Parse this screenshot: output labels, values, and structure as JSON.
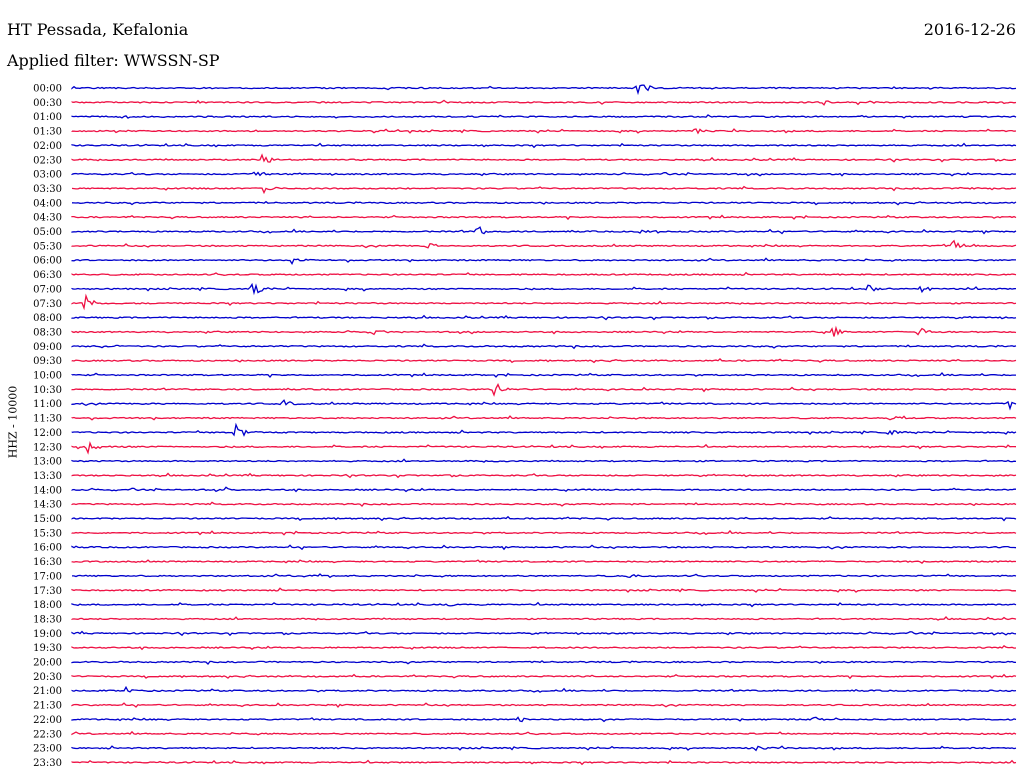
{
  "header": {
    "station": "HT Pessada, Kefalonia",
    "date": "2016-12-26",
    "filter_label": "Applied filter: WWSSN-SP"
  },
  "channel_label": "HHZ - 10000",
  "colors": {
    "trace_a": "#0000cc",
    "trace_b": "#ee1144"
  },
  "chart_data": {
    "type": "line",
    "title": "HT Pessada, Kefalonia",
    "subtitle": "Applied filter: WWSSN-SP",
    "ylabel": "HHZ - 10000",
    "row_labels": [
      "00:00",
      "00:30",
      "01:00",
      "01:30",
      "02:00",
      "02:30",
      "03:00",
      "03:30",
      "04:00",
      "04:30",
      "05:00",
      "05:30",
      "06:00",
      "06:30",
      "07:00",
      "07:30",
      "08:00",
      "08:30",
      "09:00",
      "09:30",
      "10:00",
      "10:30",
      "11:00",
      "11:30",
      "12:00",
      "12:30",
      "13:00",
      "13:30",
      "14:00",
      "14:30",
      "15:00",
      "15:30",
      "16:00",
      "16:30",
      "17:00",
      "17:30",
      "18:00",
      "18:30",
      "19:00",
      "19:30",
      "20:00",
      "20:30",
      "21:00",
      "21:30",
      "22:00",
      "22:30",
      "23:00",
      "23:30"
    ],
    "row_minutes": 30,
    "series": [
      {
        "color": "trace_a",
        "rows": "even"
      },
      {
        "color": "trace_b",
        "rows": "odd"
      }
    ],
    "events": [
      {
        "row": "00:00",
        "minute": 18.0,
        "amplitude": 9
      },
      {
        "row": "00:30",
        "minute": 23.9,
        "amplitude": 4
      },
      {
        "row": "01:00",
        "minute": 1.6,
        "amplitude": 3
      },
      {
        "row": "01:30",
        "minute": 19.8,
        "amplitude": 3
      },
      {
        "row": "02:30",
        "minute": 6.0,
        "amplitude": 10
      },
      {
        "row": "03:00",
        "minute": 5.7,
        "amplitude": 6
      },
      {
        "row": "03:30",
        "minute": 6.1,
        "amplitude": 5
      },
      {
        "row": "03:30",
        "minute": 28.3,
        "amplitude": 3
      },
      {
        "row": "04:00",
        "minute": 29.7,
        "amplitude": 3
      },
      {
        "row": "05:00",
        "minute": 12.9,
        "amplitude": 6
      },
      {
        "row": "05:00",
        "minute": 18.0,
        "amplitude": 3
      },
      {
        "row": "05:30",
        "minute": 11.3,
        "amplitude": 3
      },
      {
        "row": "05:30",
        "minute": 28.0,
        "amplitude": 6
      },
      {
        "row": "06:00",
        "minute": 7.0,
        "amplitude": 6
      },
      {
        "row": "07:00",
        "minute": 5.7,
        "amplitude": 11
      },
      {
        "row": "07:00",
        "minute": 25.3,
        "amplitude": 5
      },
      {
        "row": "07:00",
        "minute": 27.0,
        "amplitude": 4
      },
      {
        "row": "07:30",
        "minute": 0.4,
        "amplitude": 10
      },
      {
        "row": "08:30",
        "minute": 9.6,
        "amplitude": 3
      },
      {
        "row": "08:30",
        "minute": 24.2,
        "amplitude": 7
      },
      {
        "row": "08:30",
        "minute": 26.9,
        "amplitude": 7
      },
      {
        "row": "09:00",
        "minute": 1.0,
        "amplitude": 4
      },
      {
        "row": "10:30",
        "minute": 13.4,
        "amplitude": 8
      },
      {
        "row": "11:00",
        "minute": 6.7,
        "amplitude": 4
      },
      {
        "row": "11:00",
        "minute": 29.8,
        "amplitude": 5
      },
      {
        "row": "11:30",
        "minute": 25.9,
        "amplitude": 4
      },
      {
        "row": "12:00",
        "minute": 5.2,
        "amplitude": 10
      },
      {
        "row": "12:00",
        "minute": 26.0,
        "amplitude": 4
      },
      {
        "row": "12:30",
        "minute": 0.5,
        "amplitude": 6
      },
      {
        "row": "14:00",
        "minute": 4.9,
        "amplitude": 3
      },
      {
        "row": "17:00",
        "minute": 7.2,
        "amplitude": 3
      },
      {
        "row": "17:00",
        "minute": 17.7,
        "amplitude": 3
      },
      {
        "row": "18:00",
        "minute": 12.0,
        "amplitude": 3
      },
      {
        "row": "21:00",
        "minute": 1.7,
        "amplitude": 4
      },
      {
        "row": "22:00",
        "minute": 14.2,
        "amplitude": 4
      },
      {
        "row": "22:00",
        "minute": 23.6,
        "amplitude": 4
      },
      {
        "row": "23:00",
        "minute": 21.7,
        "amplitude": 3
      }
    ]
  }
}
